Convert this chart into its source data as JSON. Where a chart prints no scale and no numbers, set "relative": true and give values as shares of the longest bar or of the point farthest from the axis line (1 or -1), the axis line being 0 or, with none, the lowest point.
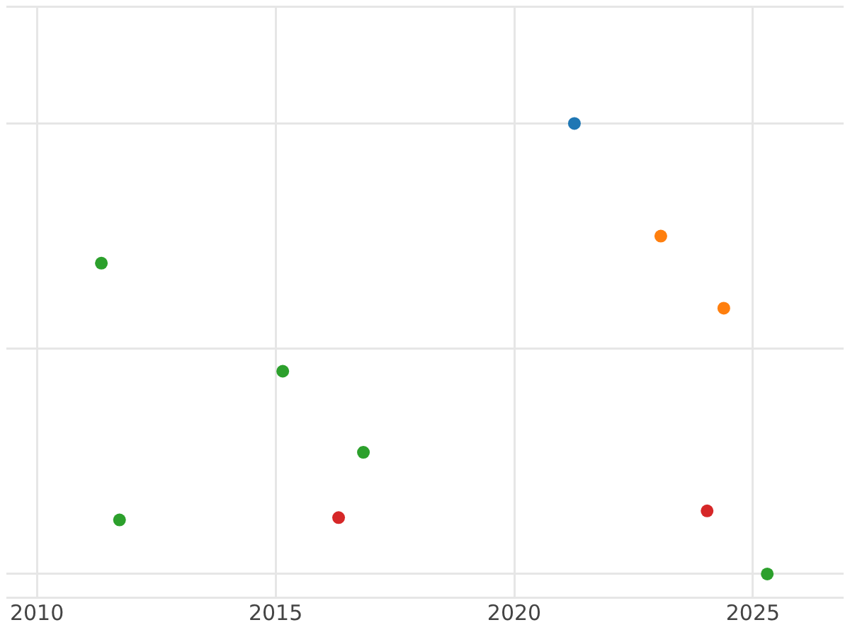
{
  "chart_data": {
    "type": "scatter",
    "relative": true,
    "xlim": [
      2009.36,
      2026.9
    ],
    "xticks": [
      2010,
      2015,
      2020,
      2025
    ],
    "grid": true,
    "tick_labels": "x",
    "marker": "circle",
    "series": [
      {
        "color": "#1f77b4",
        "x": [
          2021.26
        ],
        "values": [
          1.0
        ]
      },
      {
        "color": "#ff7f0e",
        "x": [
          2023.07,
          2024.39
        ],
        "values": [
          0.75,
          0.59
        ]
      },
      {
        "color": "#2ca02c",
        "x": [
          2011.35,
          2015.15,
          2016.84,
          2011.73,
          2025.3
        ],
        "values": [
          0.69,
          0.45,
          0.27,
          0.12,
          0
        ]
      },
      {
        "color": "#d62728",
        "x": [
          2016.32,
          2024.04
        ],
        "values": [
          0.125,
          0.14
        ]
      }
    ]
  }
}
